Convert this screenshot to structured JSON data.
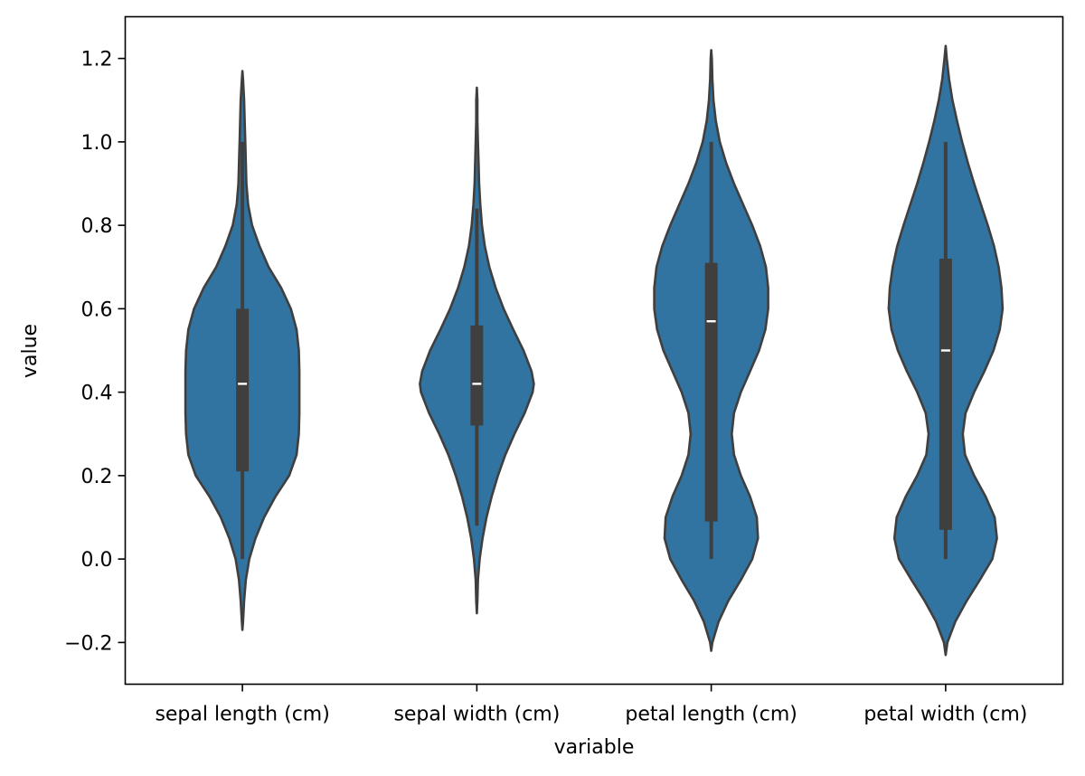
{
  "chart_data": {
    "type": "violin",
    "xlabel": "variable",
    "ylabel": "value",
    "ylim": [
      -0.3,
      1.3
    ],
    "y_ticks": [
      -0.2,
      0.0,
      0.2,
      0.4,
      0.6,
      0.8,
      1.0,
      1.2
    ],
    "y_tick_labels": [
      "−0.2",
      "0.0",
      "0.2",
      "0.4",
      "0.6",
      "0.8",
      "1.0",
      "1.2"
    ],
    "categories": [
      "sepal length (cm)",
      "sepal width (cm)",
      "petal length (cm)",
      "petal width (cm)"
    ],
    "fill_color": "#3274a1",
    "edge_color": "#3f3f3f",
    "box_color": "#3f3f3f",
    "median_color": "#ffffff",
    "grid": false,
    "legend": "none",
    "violins": [
      {
        "category": "sepal length (cm)",
        "min": 0.0,
        "q1": 0.21,
        "median": 0.42,
        "q3": 0.6,
        "max": 1.0,
        "kde_extent": [
          -0.17,
          1.17
        ],
        "density": [
          [
            -0.17,
            0.0
          ],
          [
            -0.15,
            0.01
          ],
          [
            -0.1,
            0.03
          ],
          [
            -0.05,
            0.06
          ],
          [
            0.0,
            0.12
          ],
          [
            0.05,
            0.23
          ],
          [
            0.1,
            0.38
          ],
          [
            0.15,
            0.58
          ],
          [
            0.2,
            0.82
          ],
          [
            0.25,
            0.95
          ],
          [
            0.3,
            0.99
          ],
          [
            0.35,
            1.0
          ],
          [
            0.4,
            1.0
          ],
          [
            0.45,
            1.0
          ],
          [
            0.5,
            0.99
          ],
          [
            0.55,
            0.95
          ],
          [
            0.6,
            0.85
          ],
          [
            0.65,
            0.68
          ],
          [
            0.7,
            0.46
          ],
          [
            0.75,
            0.3
          ],
          [
            0.8,
            0.17
          ],
          [
            0.85,
            0.1
          ],
          [
            0.9,
            0.07
          ],
          [
            0.95,
            0.06
          ],
          [
            1.0,
            0.05
          ],
          [
            1.05,
            0.04
          ],
          [
            1.1,
            0.03
          ],
          [
            1.15,
            0.01
          ],
          [
            1.17,
            0.0
          ]
        ]
      },
      {
        "category": "sepal width (cm)",
        "min": 0.08,
        "q1": 0.32,
        "median": 0.42,
        "q3": 0.56,
        "max": 0.84,
        "kde_extent": [
          -0.13,
          1.13
        ],
        "density": [
          [
            -0.13,
            0.0
          ],
          [
            -0.1,
            0.01
          ],
          [
            -0.05,
            0.02
          ],
          [
            0.0,
            0.05
          ],
          [
            0.05,
            0.1
          ],
          [
            0.1,
            0.17
          ],
          [
            0.15,
            0.26
          ],
          [
            0.2,
            0.37
          ],
          [
            0.25,
            0.5
          ],
          [
            0.3,
            0.66
          ],
          [
            0.35,
            0.84
          ],
          [
            0.4,
            0.98
          ],
          [
            0.42,
            1.0
          ],
          [
            0.45,
            0.96
          ],
          [
            0.5,
            0.82
          ],
          [
            0.55,
            0.64
          ],
          [
            0.6,
            0.47
          ],
          [
            0.65,
            0.33
          ],
          [
            0.7,
            0.22
          ],
          [
            0.75,
            0.14
          ],
          [
            0.8,
            0.09
          ],
          [
            0.85,
            0.06
          ],
          [
            0.9,
            0.04
          ],
          [
            0.95,
            0.03
          ],
          [
            1.0,
            0.02
          ],
          [
            1.05,
            0.01
          ],
          [
            1.1,
            0.01
          ],
          [
            1.13,
            0.0
          ]
        ]
      },
      {
        "category": "petal length (cm)",
        "min": 0.0,
        "q1": 0.09,
        "median": 0.57,
        "q3": 0.71,
        "max": 1.0,
        "kde_extent": [
          -0.22,
          1.22
        ],
        "density": [
          [
            -0.22,
            0.0
          ],
          [
            -0.2,
            0.02
          ],
          [
            -0.15,
            0.13
          ],
          [
            -0.1,
            0.3
          ],
          [
            -0.05,
            0.52
          ],
          [
            0.0,
            0.72
          ],
          [
            0.05,
            0.82
          ],
          [
            0.1,
            0.8
          ],
          [
            0.15,
            0.68
          ],
          [
            0.2,
            0.52
          ],
          [
            0.25,
            0.4
          ],
          [
            0.3,
            0.36
          ],
          [
            0.35,
            0.4
          ],
          [
            0.4,
            0.52
          ],
          [
            0.45,
            0.68
          ],
          [
            0.5,
            0.84
          ],
          [
            0.55,
            0.95
          ],
          [
            0.6,
            1.0
          ],
          [
            0.65,
            1.0
          ],
          [
            0.7,
            0.96
          ],
          [
            0.75,
            0.86
          ],
          [
            0.8,
            0.72
          ],
          [
            0.85,
            0.56
          ],
          [
            0.9,
            0.4
          ],
          [
            0.95,
            0.26
          ],
          [
            1.0,
            0.15
          ],
          [
            1.05,
            0.08
          ],
          [
            1.1,
            0.04
          ],
          [
            1.15,
            0.02
          ],
          [
            1.2,
            0.01
          ],
          [
            1.22,
            0.0
          ]
        ]
      },
      {
        "category": "petal width (cm)",
        "min": 0.0,
        "q1": 0.07,
        "median": 0.5,
        "q3": 0.72,
        "max": 1.0,
        "kde_extent": [
          -0.23,
          1.23
        ],
        "density": [
          [
            -0.23,
            0.0
          ],
          [
            -0.2,
            0.03
          ],
          [
            -0.15,
            0.17
          ],
          [
            -0.1,
            0.37
          ],
          [
            -0.05,
            0.6
          ],
          [
            0.0,
            0.82
          ],
          [
            0.05,
            0.9
          ],
          [
            0.1,
            0.86
          ],
          [
            0.15,
            0.7
          ],
          [
            0.2,
            0.5
          ],
          [
            0.25,
            0.34
          ],
          [
            0.3,
            0.3
          ],
          [
            0.35,
            0.35
          ],
          [
            0.4,
            0.5
          ],
          [
            0.45,
            0.68
          ],
          [
            0.5,
            0.84
          ],
          [
            0.55,
            0.95
          ],
          [
            0.6,
            1.0
          ],
          [
            0.65,
            0.98
          ],
          [
            0.7,
            0.93
          ],
          [
            0.75,
            0.85
          ],
          [
            0.8,
            0.74
          ],
          [
            0.85,
            0.62
          ],
          [
            0.9,
            0.5
          ],
          [
            0.95,
            0.39
          ],
          [
            1.0,
            0.29
          ],
          [
            1.05,
            0.2
          ],
          [
            1.1,
            0.12
          ],
          [
            1.15,
            0.06
          ],
          [
            1.2,
            0.02
          ],
          [
            1.23,
            0.0
          ]
        ]
      }
    ]
  }
}
